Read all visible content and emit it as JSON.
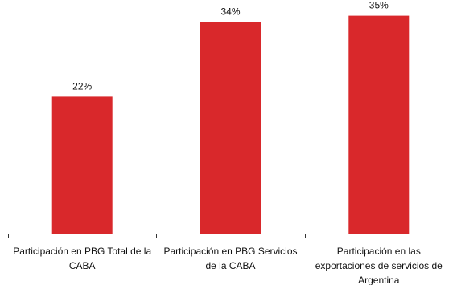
{
  "chart_data": {
    "type": "bar",
    "title": "",
    "xlabel": "",
    "ylabel": "",
    "ylim": [
      0,
      36.5
    ],
    "grid": false,
    "legend": "none",
    "categories": [
      [
        "Participación en PBG Total de la",
        "CABA"
      ],
      [
        "Participación en PBG Servicios",
        "de la CABA"
      ],
      [
        "Participación en las",
        "exportaciones de servicios de",
        "Argentina"
      ]
    ],
    "values": [
      22,
      34,
      35
    ],
    "value_labels": [
      "22%",
      "34%",
      "35%"
    ],
    "colors": {
      "bar": "#d9282b",
      "axis": "#333333",
      "text": "#111111"
    }
  }
}
